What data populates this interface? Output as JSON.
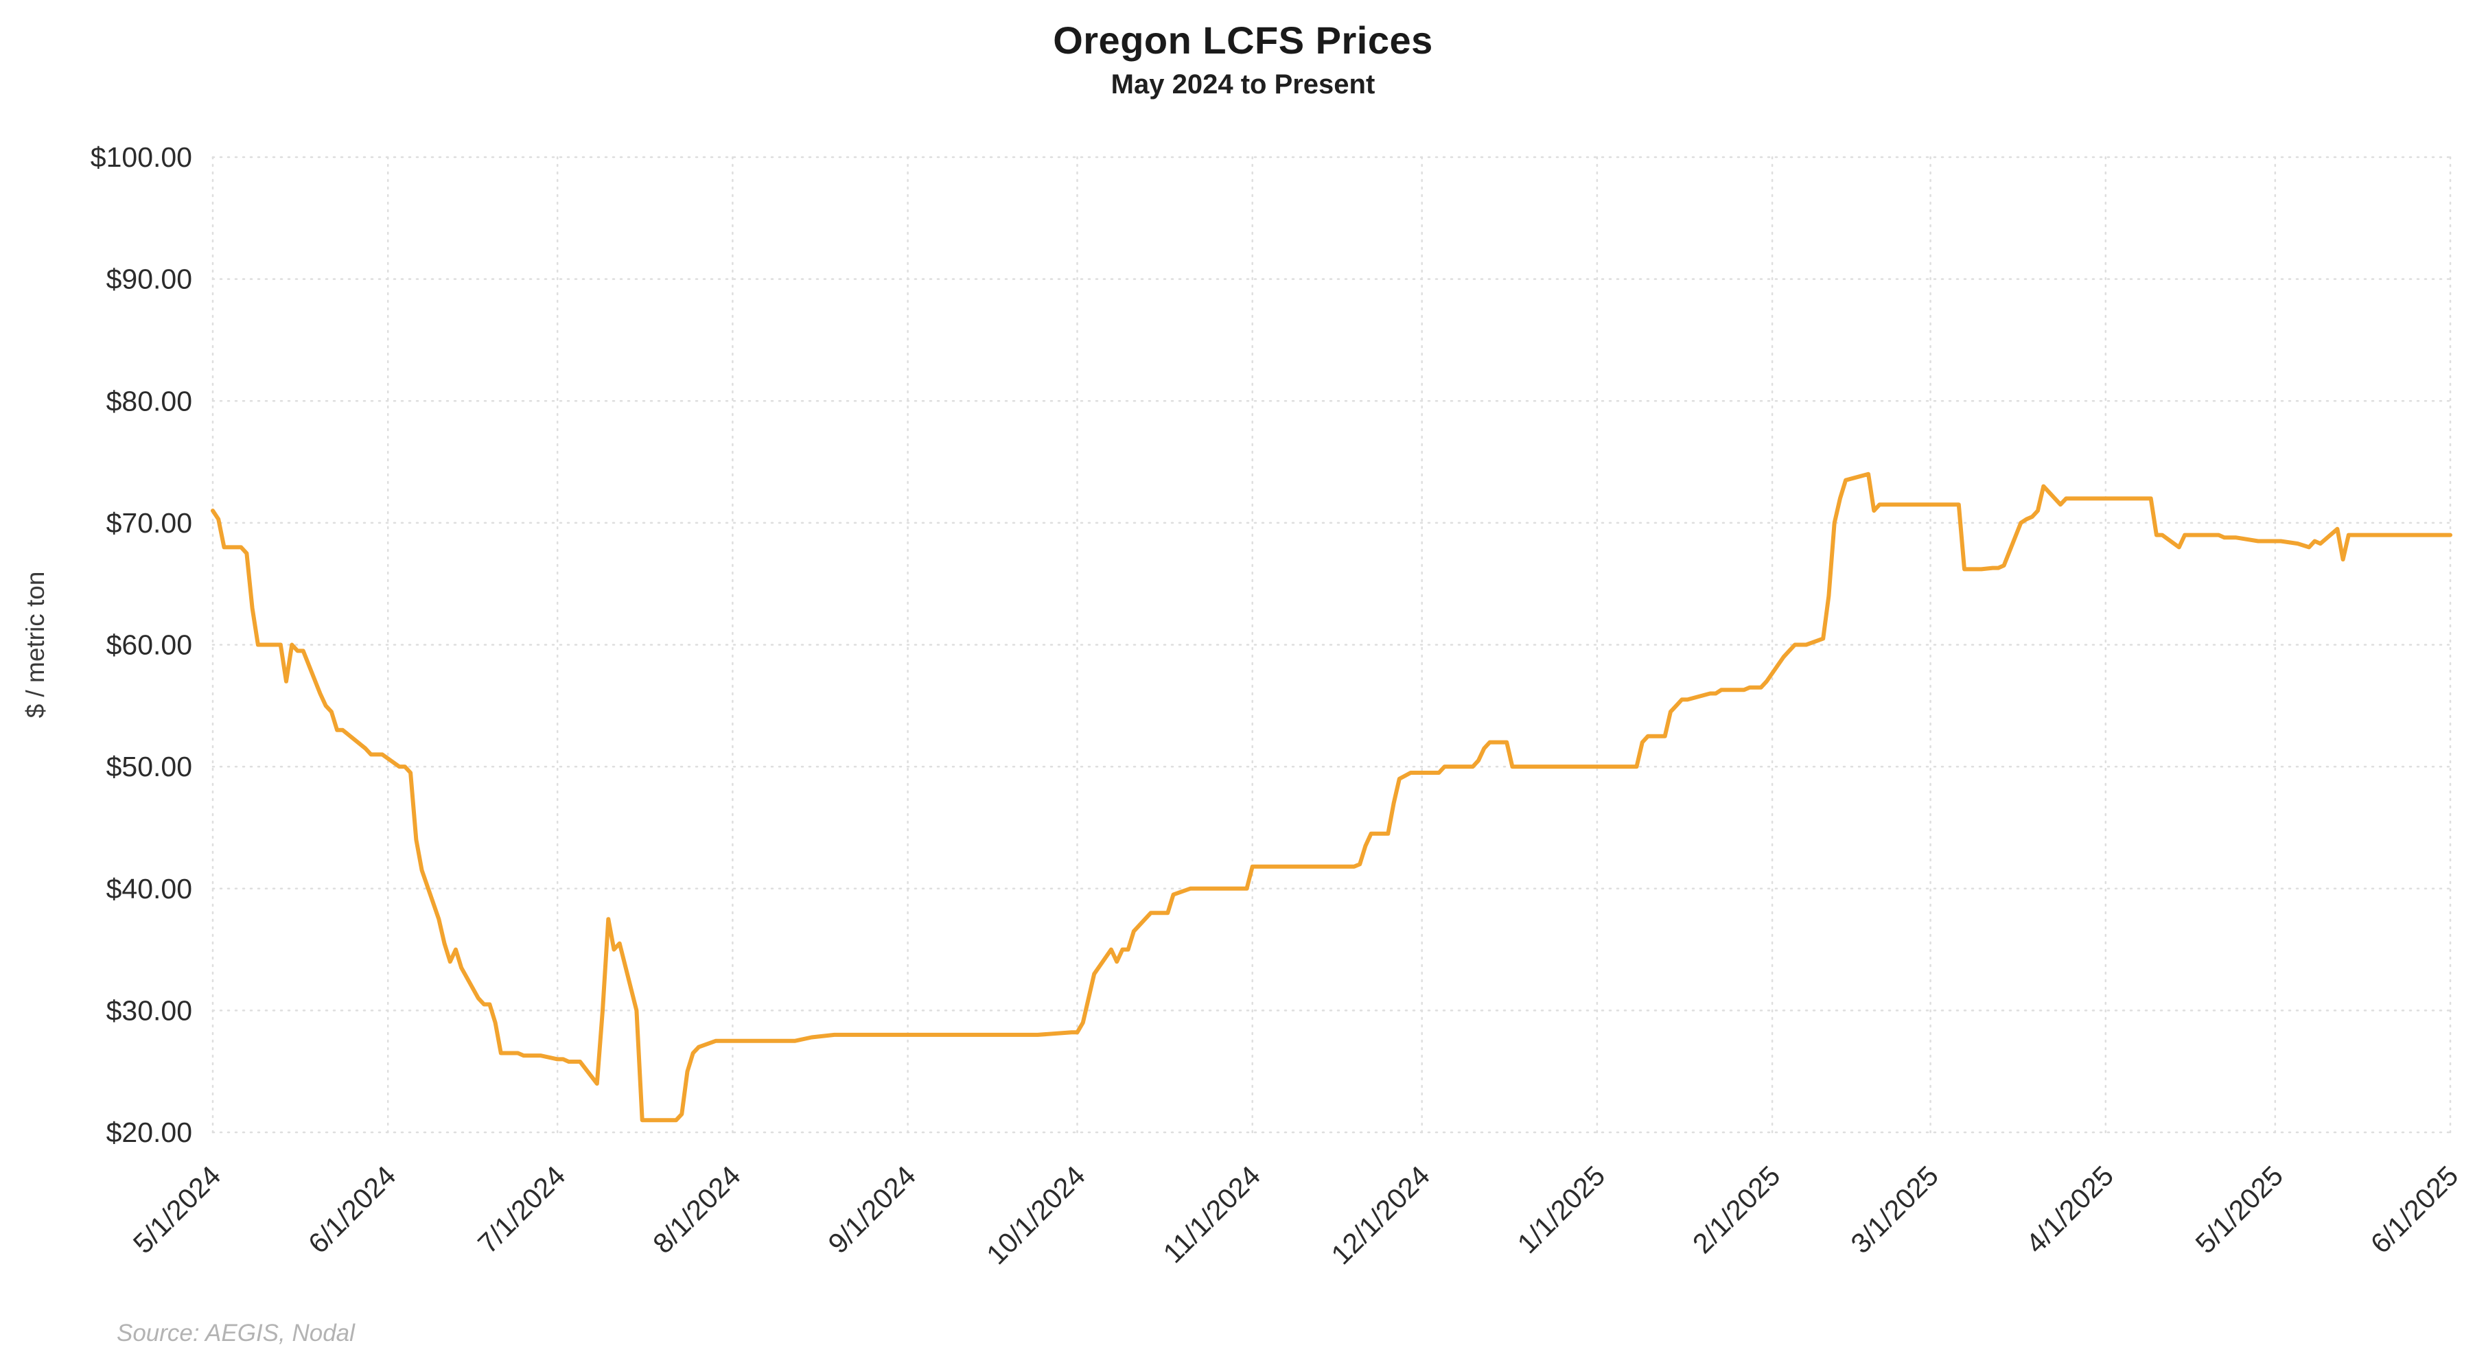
{
  "header": {
    "title": "Oregon LCFS Prices",
    "subtitle": "May 2024 to Present"
  },
  "footer": {
    "source": "Source: AEGIS, Nodal"
  },
  "chart_data": {
    "type": "line",
    "title": "Oregon LCFS Prices",
    "subtitle": "May 2024 to Present",
    "xlabel": "",
    "ylabel": "$ / metric ton",
    "ylim": [
      20,
      100
    ],
    "yticks": [
      20,
      30,
      40,
      50,
      60,
      70,
      80,
      90,
      100
    ],
    "ytick_labels": [
      "$20.00",
      "$30.00",
      "$40.00",
      "$50.00",
      "$60.00",
      "$70.00",
      "$80.00",
      "$90.00",
      "$100.00"
    ],
    "xlim": [
      "2024-05-01",
      "2025-06-01"
    ],
    "xticks": [
      {
        "label": "5/1/2024",
        "date": "2024-05-01"
      },
      {
        "label": "6/1/2024",
        "date": "2024-06-01"
      },
      {
        "label": "7/1/2024",
        "date": "2024-07-01"
      },
      {
        "label": "8/1/2024",
        "date": "2024-08-01"
      },
      {
        "label": "9/1/2024",
        "date": "2024-09-01"
      },
      {
        "label": "10/1/2024",
        "date": "2024-10-01"
      },
      {
        "label": "11/1/2024",
        "date": "2024-11-01"
      },
      {
        "label": "12/1/2024",
        "date": "2024-12-01"
      },
      {
        "label": "1/1/2025",
        "date": "2025-01-01"
      },
      {
        "label": "2/1/2025",
        "date": "2025-02-01"
      },
      {
        "label": "3/1/2025",
        "date": "2025-03-01"
      },
      {
        "label": "4/1/2025",
        "date": "2025-04-01"
      },
      {
        "label": "5/1/2025",
        "date": "2025-05-01"
      },
      {
        "label": "6/1/2025",
        "date": "2025-06-01"
      }
    ],
    "grid": true,
    "legend": false,
    "line_color": "#F2A32E",
    "series": [
      {
        "name": "Oregon LCFS",
        "x": [
          "2024-05-01",
          "2024-05-02",
          "2024-05-03",
          "2024-05-06",
          "2024-05-07",
          "2024-05-08",
          "2024-05-09",
          "2024-05-10",
          "2024-05-13",
          "2024-05-14",
          "2024-05-15",
          "2024-05-16",
          "2024-05-17",
          "2024-05-20",
          "2024-05-21",
          "2024-05-22",
          "2024-05-23",
          "2024-05-24",
          "2024-05-28",
          "2024-05-29",
          "2024-05-30",
          "2024-05-31",
          "2024-06-03",
          "2024-06-04",
          "2024-06-05",
          "2024-06-06",
          "2024-06-07",
          "2024-06-10",
          "2024-06-11",
          "2024-06-12",
          "2024-06-13",
          "2024-06-14",
          "2024-06-17",
          "2024-06-18",
          "2024-06-19",
          "2024-06-20",
          "2024-06-21",
          "2024-06-24",
          "2024-06-25",
          "2024-06-26",
          "2024-06-27",
          "2024-06-28",
          "2024-07-01",
          "2024-07-02",
          "2024-07-03",
          "2024-07-05",
          "2024-07-08",
          "2024-07-09",
          "2024-07-10",
          "2024-07-11",
          "2024-07-12",
          "2024-07-15",
          "2024-07-16",
          "2024-07-17",
          "2024-07-18",
          "2024-07-19",
          "2024-07-22",
          "2024-07-23",
          "2024-07-24",
          "2024-07-25",
          "2024-07-26",
          "2024-07-29",
          "2024-07-30",
          "2024-07-31",
          "2024-08-05",
          "2024-08-12",
          "2024-08-15",
          "2024-08-19",
          "2024-08-26",
          "2024-09-03",
          "2024-09-10",
          "2024-09-17",
          "2024-09-24",
          "2024-09-30",
          "2024-10-01",
          "2024-10-02",
          "2024-10-03",
          "2024-10-04",
          "2024-10-07",
          "2024-10-08",
          "2024-10-09",
          "2024-10-10",
          "2024-10-11",
          "2024-10-14",
          "2024-10-15",
          "2024-10-16",
          "2024-10-17",
          "2024-10-18",
          "2024-10-21",
          "2024-10-22",
          "2024-10-25",
          "2024-10-28",
          "2024-10-30",
          "2024-10-31",
          "2024-11-01",
          "2024-11-04",
          "2024-11-07",
          "2024-11-12",
          "2024-11-15",
          "2024-11-19",
          "2024-11-20",
          "2024-11-21",
          "2024-11-22",
          "2024-11-25",
          "2024-11-26",
          "2024-11-27",
          "2024-11-29",
          "2024-12-02",
          "2024-12-04",
          "2024-12-05",
          "2024-12-09",
          "2024-12-10",
          "2024-12-11",
          "2024-12-12",
          "2024-12-13",
          "2024-12-16",
          "2024-12-17",
          "2024-12-18",
          "2024-12-20",
          "2024-12-23",
          "2024-12-27",
          "2024-12-31",
          "2025-01-02",
          "2025-01-06",
          "2025-01-08",
          "2025-01-09",
          "2025-01-10",
          "2025-01-13",
          "2025-01-14",
          "2025-01-15",
          "2025-01-16",
          "2025-01-17",
          "2025-01-21",
          "2025-01-22",
          "2025-01-23",
          "2025-01-27",
          "2025-01-28",
          "2025-01-30",
          "2025-01-31",
          "2025-02-03",
          "2025-02-04",
          "2025-02-05",
          "2025-02-07",
          "2025-02-10",
          "2025-02-11",
          "2025-02-12",
          "2025-02-13",
          "2025-02-14",
          "2025-02-18",
          "2025-02-19",
          "2025-02-20",
          "2025-02-24",
          "2025-02-26",
          "2025-02-28",
          "2025-03-03",
          "2025-03-05",
          "2025-03-06",
          "2025-03-07",
          "2025-03-10",
          "2025-03-12",
          "2025-03-13",
          "2025-03-14",
          "2025-03-17",
          "2025-03-18",
          "2025-03-19",
          "2025-03-20",
          "2025-03-21",
          "2025-03-24",
          "2025-03-25",
          "2025-03-26",
          "2025-03-28",
          "2025-03-31",
          "2025-04-02",
          "2025-04-04",
          "2025-04-08",
          "2025-04-09",
          "2025-04-10",
          "2025-04-11",
          "2025-04-14",
          "2025-04-15",
          "2025-04-16",
          "2025-04-18",
          "2025-04-21",
          "2025-04-22",
          "2025-04-24",
          "2025-04-28",
          "2025-04-30",
          "2025-05-02",
          "2025-05-05",
          "2025-05-07",
          "2025-05-08",
          "2025-05-09",
          "2025-05-12",
          "2025-05-13",
          "2025-05-14",
          "2025-05-15",
          "2025-05-19",
          "2025-05-22",
          "2025-05-27",
          "2025-05-30",
          "2025-06-01"
        ],
        "y": [
          71.0,
          70.3,
          68.0,
          68.0,
          67.5,
          63.0,
          60.0,
          60.0,
          60.0,
          57.0,
          60.0,
          59.5,
          59.5,
          56.0,
          55.0,
          54.5,
          53.0,
          53.0,
          51.5,
          51.0,
          51.0,
          51.0,
          50.0,
          50.0,
          49.5,
          44.0,
          41.5,
          37.5,
          35.5,
          34.0,
          35.0,
          33.5,
          31.0,
          30.5,
          30.5,
          29.0,
          26.5,
          26.5,
          26.3,
          26.3,
          26.3,
          26.3,
          26.0,
          26.0,
          25.8,
          25.8,
          24.0,
          30.0,
          37.5,
          35.0,
          35.5,
          30.0,
          21.0,
          21.0,
          21.0,
          21.0,
          21.0,
          21.5,
          25.0,
          26.5,
          27.0,
          27.5,
          27.5,
          27.5,
          27.5,
          27.5,
          27.8,
          28.0,
          28.0,
          28.0,
          28.0,
          28.0,
          28.0,
          28.2,
          28.2,
          29.0,
          31.0,
          33.0,
          35.0,
          34.0,
          35.0,
          35.0,
          36.5,
          38.0,
          38.0,
          38.0,
          38.0,
          39.5,
          40.0,
          40.0,
          40.0,
          40.0,
          40.0,
          40.0,
          41.8,
          41.8,
          41.8,
          41.8,
          41.8,
          41.8,
          42.0,
          43.5,
          44.5,
          44.5,
          47.0,
          49.0,
          49.5,
          49.5,
          49.5,
          50.0,
          50.0,
          50.0,
          50.5,
          51.5,
          52.0,
          52.0,
          50.0,
          50.0,
          50.0,
          50.0,
          50.0,
          50.0,
          50.0,
          50.0,
          50.0,
          52.0,
          52.5,
          52.5,
          54.5,
          55.0,
          55.5,
          55.5,
          56.0,
          56.0,
          56.3,
          56.3,
          56.5,
          56.5,
          57.0,
          59.0,
          59.5,
          60.0,
          60.0,
          60.5,
          64.0,
          70.0,
          72.0,
          73.5,
          74.0,
          71.0,
          71.5,
          71.5,
          71.5,
          71.5,
          71.5,
          71.5,
          71.5,
          66.2,
          66.2,
          66.3,
          66.3,
          66.5,
          70.0,
          70.3,
          70.5,
          71.0,
          73.0,
          71.5,
          72.0,
          72.0,
          72.0,
          72.0,
          72.0,
          72.0,
          72.0,
          72.0,
          69.0,
          69.0,
          68.0,
          69.0,
          69.0,
          69.0,
          69.0,
          68.8,
          68.8,
          68.5,
          68.5,
          68.5,
          68.3,
          68.0,
          68.5,
          68.3,
          69.5,
          67.0,
          69.0,
          69.0,
          69.0,
          69.0,
          69.0,
          69.0,
          69.0
        ]
      }
    ]
  }
}
